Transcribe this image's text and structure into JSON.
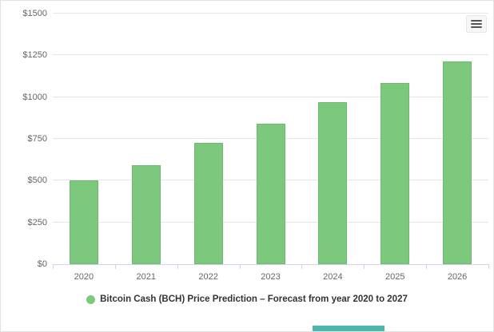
{
  "chart_data": {
    "type": "bar",
    "categories": [
      "2020",
      "2021",
      "2022",
      "2023",
      "2024",
      "2025",
      "2026"
    ],
    "values": [
      500,
      590,
      725,
      840,
      970,
      1085,
      1215
    ],
    "title": "",
    "xlabel": "",
    "ylabel": "",
    "ylim": [
      0,
      1500
    ],
    "yticks": [
      0,
      250,
      500,
      750,
      1000,
      1250,
      1500
    ],
    "ytick_labels": [
      "$0",
      "$250",
      "$500",
      "$750",
      "$1000",
      "$1250",
      "$1500"
    ],
    "grid": true,
    "legend": "Bitcoin Cash (BCH) Price Prediction – Forecast from year 2020 to 2027",
    "legend_position": "bottom",
    "bar_color": "#7cc97e",
    "bar_border_color": "#6dbb70",
    "gridline_color": "#e6e6e6",
    "axis_label_color": "#666666",
    "legend_text_color": "#333333"
  },
  "toolbar": {
    "context_menu_icon": "hamburger-menu-icon"
  }
}
